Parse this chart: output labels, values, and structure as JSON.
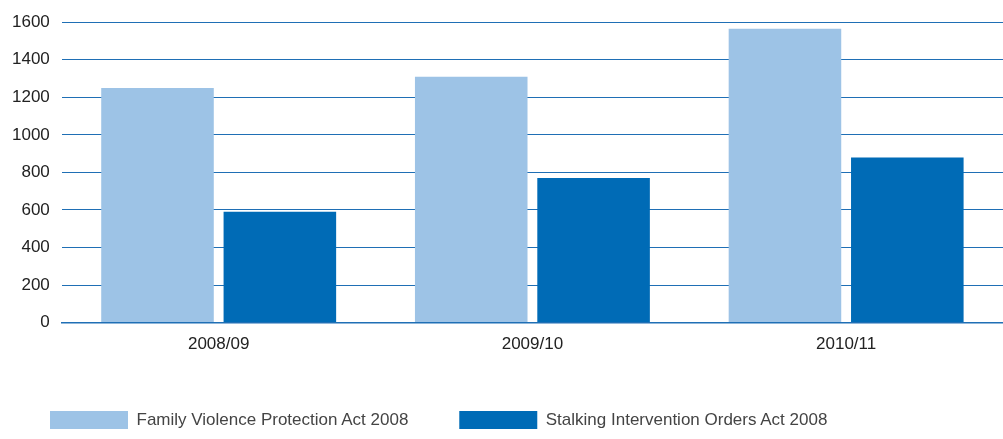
{
  "chart_data": {
    "type": "bar",
    "categories": [
      "2008/09",
      "2009/10",
      "2010/11"
    ],
    "series": [
      {
        "name": "Family Violence Protection Act 2008",
        "color": "#9dc3e6",
        "values": [
          1250,
          1310,
          1565
        ]
      },
      {
        "name": "Stalking Intervention Orders Act 2008",
        "color": "#006bb6",
        "values": [
          590,
          770,
          880
        ]
      }
    ],
    "ylim": [
      0,
      1600
    ],
    "yticks": [
      0,
      200,
      400,
      600,
      800,
      1000,
      1200,
      1400,
      1600
    ],
    "grid": "y",
    "legend": "bottom left"
  }
}
